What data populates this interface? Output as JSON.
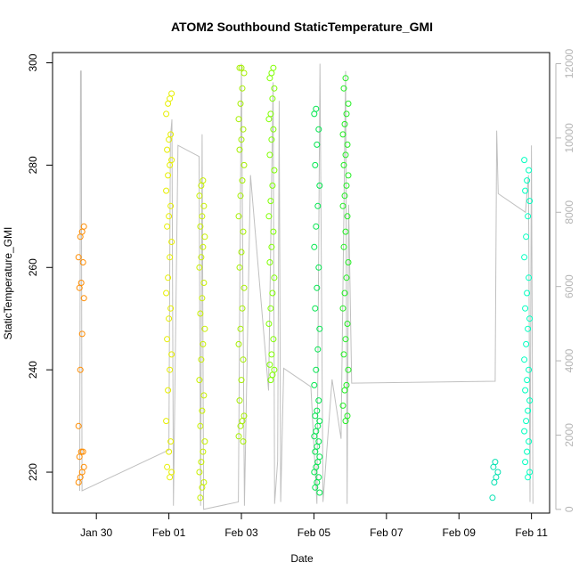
{
  "chart_data": {
    "type": "scatter",
    "title": "ATOM2 Southbound StaticTemperature_GMI",
    "xlabel": "Date",
    "ylabel": "StaticTemperature_GMI",
    "xlim": [
      "2016-01-28T19:00",
      "2016-02-11T12:00"
    ],
    "ylim": [
      212,
      302
    ],
    "y2lim": [
      -100,
      12300
    ],
    "x_ticks": [
      {
        "date": "2016-01-30",
        "label": "Jan 30"
      },
      {
        "date": "2016-02-01",
        "label": "Feb 01"
      },
      {
        "date": "2016-02-03",
        "label": "Feb 03"
      },
      {
        "date": "2016-02-05",
        "label": "Feb 05"
      },
      {
        "date": "2016-02-07",
        "label": "Feb 07"
      },
      {
        "date": "2016-02-09",
        "label": "Feb 09"
      },
      {
        "date": "2016-02-11",
        "label": "Feb 11"
      }
    ],
    "y_ticks": [
      220,
      240,
      260,
      280,
      300
    ],
    "y2_ticks": [
      0,
      2000,
      4000,
      6000,
      8000,
      10000,
      12000
    ],
    "grid": false,
    "colors": {
      "flight1": "#ff8c00",
      "flight2": "#e6ee00",
      "flight3": "#c8f000",
      "flight4": "#a5ef00",
      "flight5": "#7fff00",
      "flight6": "#00e64d",
      "flight7": "#22ee22",
      "flight8": "#00e0b0",
      "flight9": "#00ffc0",
      "altitude": "#c0c0c0"
    },
    "temperature_series": [
      {
        "x": "2016-01-29T14:00",
        "color": "flight1",
        "y": [
          218,
          219,
          220,
          221,
          223,
          224,
          224,
          229,
          240,
          247,
          254,
          256,
          257,
          261,
          262,
          266,
          267,
          268
        ]
      },
      {
        "x": "2016-02-01T00:00",
        "color": "flight2",
        "y": [
          219,
          220,
          221,
          224,
          226,
          230,
          236,
          240,
          243,
          246,
          250,
          252,
          255,
          258,
          262,
          265,
          268,
          270,
          272,
          275,
          278,
          280,
          281,
          283,
          285,
          286,
          290,
          292,
          293,
          294
        ]
      },
      {
        "x": "2016-02-01T22:00",
        "color": "flight3",
        "y": [
          215,
          217,
          218,
          220,
          222,
          224,
          226,
          229,
          232,
          235,
          238,
          242,
          245,
          248,
          251,
          254,
          257,
          260,
          262,
          264,
          266,
          268,
          270,
          272,
          274,
          276,
          277
        ]
      },
      {
        "x": "2016-02-03T00:00",
        "color": "flight4",
        "y": [
          226,
          227,
          229,
          230,
          231,
          234,
          238,
          242,
          245,
          248,
          252,
          256,
          260,
          263,
          267,
          270,
          274,
          277,
          280,
          283,
          285,
          287,
          289,
          292,
          295,
          298,
          299,
          299
        ]
      },
      {
        "x": "2016-02-03T20:00",
        "color": "flight5",
        "y": [
          238,
          239,
          240,
          241,
          243,
          246,
          249,
          252,
          255,
          258,
          261,
          264,
          267,
          270,
          273,
          276,
          279,
          282,
          285,
          287,
          289,
          290,
          293,
          295,
          297,
          298,
          299
        ]
      },
      {
        "x": "2016-02-05T02:00",
        "color": "flight6",
        "y": [
          216,
          217,
          218,
          219,
          220,
          221,
          222,
          223,
          224,
          225,
          226,
          227,
          228,
          229,
          230,
          231,
          232,
          234,
          237,
          240,
          244,
          248,
          252,
          256,
          260,
          264,
          268,
          272,
          276,
          280,
          284,
          287,
          290,
          291
        ]
      },
      {
        "x": "2016-02-05T21:00",
        "color": "flight7",
        "y": [
          230,
          231,
          233,
          236,
          237,
          240,
          243,
          246,
          249,
          252,
          255,
          258,
          261,
          264,
          267,
          270,
          272,
          274,
          276,
          278,
          280,
          282,
          284,
          286,
          288,
          290,
          292,
          295,
          297
        ]
      },
      {
        "x": "2016-02-10T00:00",
        "color": "flight8",
        "y": [
          215,
          218,
          219,
          220,
          221,
          222
        ]
      },
      {
        "x": "2016-02-10T21:00",
        "color": "flight9",
        "y": [
          219,
          220,
          222,
          224,
          226,
          228,
          230,
          232,
          234,
          236,
          238,
          240,
          242,
          245,
          248,
          250,
          252,
          255,
          258,
          262,
          266,
          270,
          273,
          275,
          277,
          279,
          281
        ]
      }
    ],
    "altitude_path": [
      [
        "2016-01-29T13:00",
        500
      ],
      [
        "2016-01-29T13:30",
        11800
      ],
      [
        "2016-01-29T14:00",
        11800
      ],
      [
        "2016-01-29T14:30",
        500
      ],
      [
        "2016-02-01T00:00",
        1600
      ],
      [
        "2016-02-01T01:00",
        10000
      ],
      [
        "2016-02-01T02:00",
        10500
      ],
      [
        "2016-02-01T03:00",
        100
      ],
      [
        "2016-02-01T06:00",
        9800
      ],
      [
        "2016-02-01T20:00",
        9500
      ],
      [
        "2016-02-01T21:00",
        100
      ],
      [
        "2016-02-01T22:00",
        10100
      ],
      [
        "2016-02-01T23:00",
        0
      ],
      [
        "2016-02-02T22:00",
        200
      ],
      [
        "2016-02-03T00:00",
        12000
      ],
      [
        "2016-02-03T02:00",
        100
      ],
      [
        "2016-02-03T06:00",
        9000
      ],
      [
        "2016-02-03T18:00",
        3200
      ],
      [
        "2016-02-03T21:00",
        11500
      ],
      [
        "2016-02-03T22:00",
        150
      ],
      [
        "2016-02-04T00:00",
        1300
      ],
      [
        "2016-02-04T01:00",
        11000
      ],
      [
        "2016-02-04T02:00",
        200
      ],
      [
        "2016-02-04T04:00",
        3800
      ],
      [
        "2016-02-04T22:00",
        3300
      ],
      [
        "2016-02-05T02:00",
        150
      ],
      [
        "2016-02-05T04:00",
        12000
      ],
      [
        "2016-02-05T06:00",
        200
      ],
      [
        "2016-02-05T12:00",
        3500
      ],
      [
        "2016-02-05T18:00",
        1900
      ],
      [
        "2016-02-05T21:00",
        11800
      ],
      [
        "2016-02-05T22:00",
        150
      ],
      [
        "2016-02-05T23:00",
        8200
      ],
      [
        "2016-02-06T01:00",
        3400
      ],
      [
        "2016-02-10T00:00",
        3450
      ],
      [
        "2016-02-10T01:00",
        10200
      ],
      [
        "2016-02-10T02:00",
        8500
      ],
      [
        "2016-02-10T20:00",
        8000
      ],
      [
        "2016-02-10T22:00",
        9000
      ],
      [
        "2016-02-10T23:00",
        200
      ],
      [
        "2016-02-11T00:00",
        9800
      ],
      [
        "2016-02-11T01:00",
        150
      ]
    ]
  }
}
